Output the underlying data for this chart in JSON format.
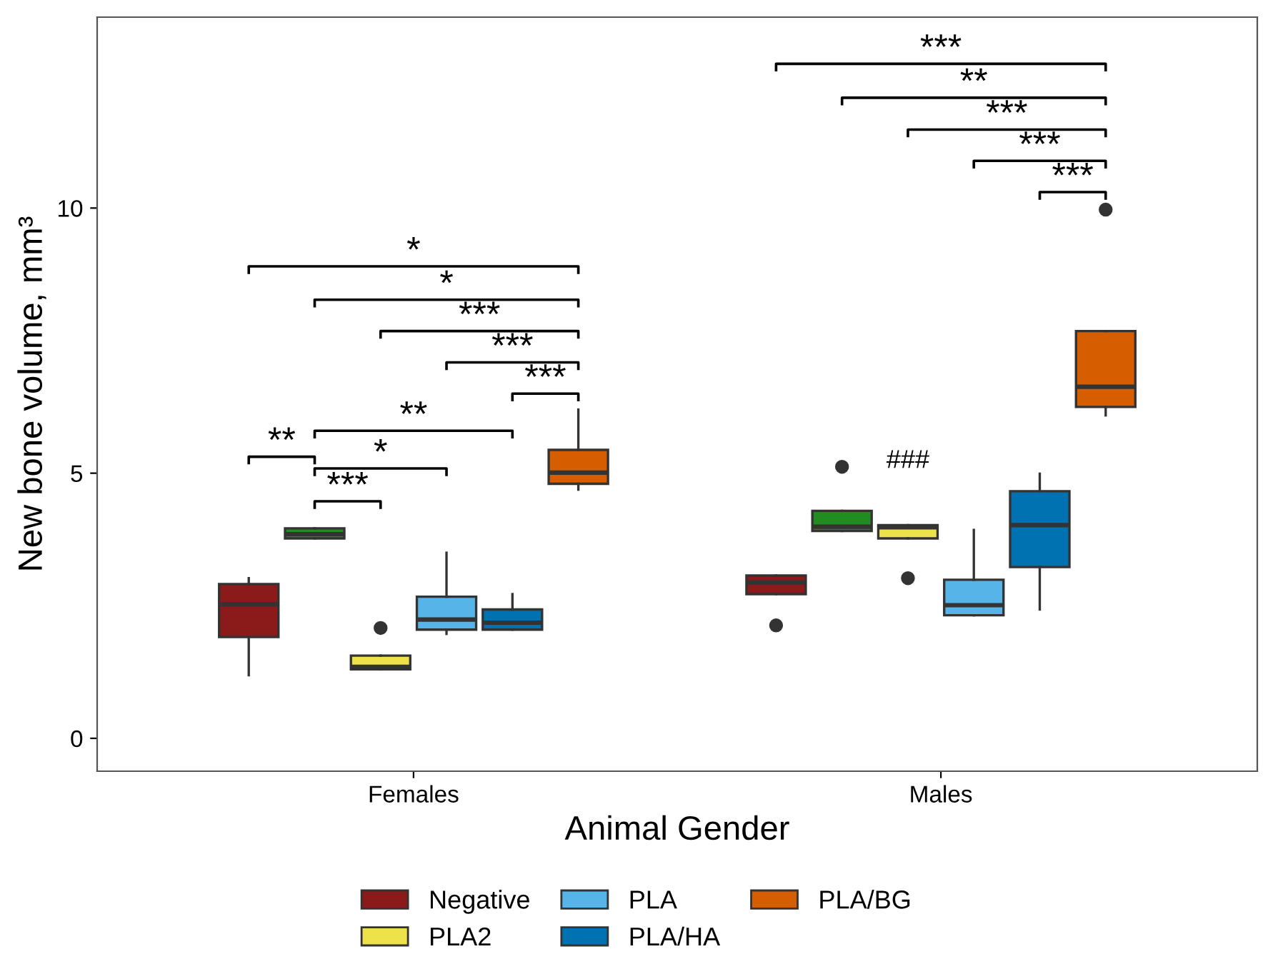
{
  "chart_data": {
    "type": "box",
    "xlabel": "Animal Gender",
    "ylabel": "New bone volume, mm³",
    "categories": [
      "Females",
      "Males"
    ],
    "ylim": [
      -0.62,
      13.6
    ],
    "yticks": [
      0,
      5,
      10
    ],
    "grid": false,
    "legend": "bottom",
    "series": [
      {
        "name": "Negative",
        "color": "#8b1a1a",
        "boxes": [
          {
            "low": 1.19,
            "q1": 1.91,
            "median": 2.53,
            "q3": 2.91,
            "high": 3.02
          },
          {
            "low": 2.72,
            "q1": 2.72,
            "median": 2.94,
            "q3": 3.07,
            "high": 3.07,
            "outliers": [
              2.13
            ]
          }
        ]
      },
      {
        "color": "#228b22",
        "boxes": [
          {
            "low": 3.77,
            "q1": 3.77,
            "median": 3.85,
            "q3": 3.96,
            "high": 3.96
          },
          {
            "low": 3.91,
            "q1": 3.91,
            "median": 3.99,
            "q3": 4.29,
            "high": 4.29,
            "outliers": [
              5.12
            ]
          }
        ]
      },
      {
        "name": "PLA2",
        "color": "#eee24a",
        "boxes": [
          {
            "low": 1.3,
            "q1": 1.3,
            "median": 1.35,
            "q3": 1.56,
            "high": 1.56,
            "outliers": [
              2.08
            ]
          },
          {
            "low": 3.77,
            "q1": 3.77,
            "median": 3.98,
            "q3": 4.02,
            "high": 4.02,
            "outliers": [
              3.02
            ]
          }
        ]
      },
      {
        "name": "PLA",
        "color": "#56b4e9",
        "boxes": [
          {
            "low": 1.97,
            "q1": 2.05,
            "median": 2.24,
            "q3": 2.67,
            "high": 3.5
          },
          {
            "low": 2.32,
            "q1": 2.32,
            "median": 2.51,
            "q3": 2.99,
            "high": 3.93
          }
        ]
      },
      {
        "name": "PLA/HA",
        "color": "#0072b2",
        "boxes": [
          {
            "low": 2.05,
            "q1": 2.05,
            "median": 2.18,
            "q3": 2.43,
            "high": 2.72
          },
          {
            "low": 2.43,
            "q1": 3.23,
            "median": 4.02,
            "q3": 4.66,
            "high": 4.99
          }
        ]
      },
      {
        "name": "PLA/BG",
        "color": "#d55e00",
        "boxes": [
          {
            "low": 4.69,
            "q1": 4.8,
            "median": 5.01,
            "q3": 5.44,
            "high": 6.2
          },
          {
            "low": 6.09,
            "q1": 6.25,
            "median": 6.63,
            "q3": 7.68,
            "high": 7.68,
            "outliers": [
              9.97
            ]
          }
        ]
      }
    ],
    "annotations": [
      "*",
      "*",
      "***",
      "***",
      "***",
      "**",
      "**",
      "*",
      "***",
      "***",
      "**",
      "***",
      "***",
      "***",
      "###"
    ]
  }
}
